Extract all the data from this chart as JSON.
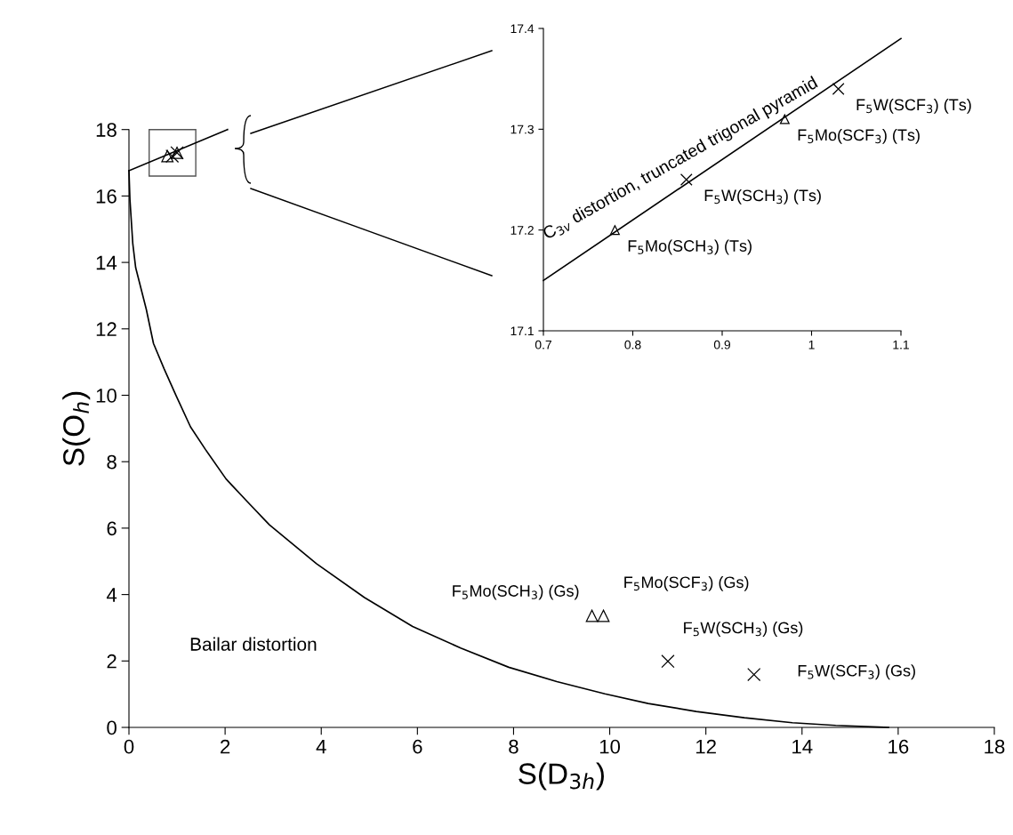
{
  "chart_data": [
    {
      "type": "scatter",
      "xlabel": "S(D$_{3h}$)",
      "ylabel": "S(O$_{h}$)",
      "xlim": [
        0,
        18
      ],
      "ylim": [
        0,
        18
      ],
      "xticks": [
        0,
        2,
        4,
        6,
        8,
        10,
        12,
        14,
        16,
        18
      ],
      "yticks": [
        0,
        2,
        4,
        6,
        8,
        10,
        12,
        14,
        16,
        18
      ],
      "grid": false,
      "series": [
        {
          "type": "line",
          "color": "#000000",
          "marker": "none",
          "line_style": "solid",
          "x": [
            0,
            0.02,
            0.08,
            0.14,
            0.36,
            0.51,
            0.73,
            0.98,
            1.28,
            1.59,
            2.02,
            2.46,
            2.92,
            3.9,
            4.9,
            5.9,
            6.9,
            7.9,
            8.9,
            9.9,
            10.8,
            11.8,
            12.8,
            13.8,
            14.7,
            15.6,
            15.8
          ],
          "values": [
            16.76,
            15.9,
            14.56,
            13.84,
            12.59,
            11.56,
            10.8,
            9.99,
            9.05,
            8.37,
            7.48,
            6.8,
            6.1,
            4.93,
            3.91,
            3.04,
            2.39,
            1.81,
            1.38,
            1.01,
            0.72,
            0.48,
            0.29,
            0.14,
            0.06,
            0.01,
            0
          ]
        },
        {
          "type": "line",
          "color": "#000000",
          "marker": "none",
          "line_style": "solid",
          "x": [
            0,
            2.05
          ],
          "values": [
            16.76,
            18.0
          ]
        },
        {
          "color": "#000000",
          "marker": "triangle",
          "x": [
            9.63,
            9.87,
            0.8,
            1.0
          ],
          "values": [
            3.36,
            3.36,
            17.2,
            17.3
          ]
        },
        {
          "color": "#000000",
          "marker": "cross",
          "x": [
            11.21,
            13.0,
            0.9,
            1.0
          ],
          "values": [
            1.99,
            1.59,
            17.2,
            17.3
          ]
        }
      ],
      "annotations": [
        {
          "text": "F$_{5}$Mo(SCH$_{3}$) (Gs)",
          "x": 9.63,
          "y": 3.36
        },
        {
          "text": "F$_{5}$Mo(SCF$_{3}$) (Gs)",
          "x": 9.87,
          "y": 3.36
        },
        {
          "text": "F$_{5}$W(SCH$_{3}$) (Gs)",
          "x": 11.21,
          "y": 1.99
        },
        {
          "text": "F$_{5}$W(SCF$_{3}$) (Gs)",
          "x": 13.0,
          "y": 1.59
        },
        "Bailar distortion"
      ]
    },
    {
      "type": "scatter",
      "xlim": [
        0.7,
        1.1
      ],
      "ylim": [
        17.1,
        17.4
      ],
      "xticks": [
        0.7,
        0.8,
        0.9,
        {
          "value": 1.0,
          "label": "1"
        },
        1.1
      ],
      "yticks": [
        17.1,
        17.2,
        17.3,
        17.4
      ],
      "grid": false,
      "series": [
        {
          "type": "line",
          "color": "#000000",
          "marker": "none",
          "line_style": "solid",
          "x": [
            0.7,
            1.1
          ],
          "values": [
            17.15,
            17.39
          ]
        },
        {
          "color": "#000000",
          "marker": "triangle",
          "x": [
            0.78,
            0.97
          ],
          "values": [
            17.2,
            17.31
          ]
        },
        {
          "color": "#000000",
          "marker": "cross",
          "x": [
            0.86,
            1.03
          ],
          "values": [
            17.25,
            17.34
          ]
        }
      ],
      "annotations": [
        {
          "text": "F$_{5}$Mo(SCH$_{3}$) (Ts)",
          "x": 0.78,
          "y": 17.2
        },
        {
          "text": "F$_{5}$W(SCH$_{3}$) (Ts)",
          "x": 0.86,
          "y": 17.25
        },
        {
          "text": "F$_{5}$Mo(SCF$_{3}$) (Ts)",
          "x": 0.97,
          "y": 17.31
        },
        {
          "text": "F$_{5}$W(SCF$_{3}$) (Ts)",
          "x": 1.03,
          "y": 17.34
        },
        "C$_{3v}$ distortion, truncated trigonal pyramid"
      ]
    }
  ]
}
